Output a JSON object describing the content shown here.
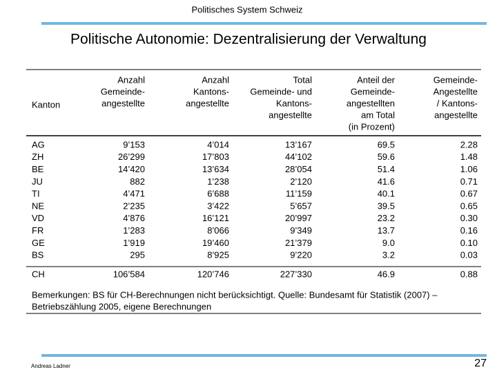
{
  "header": {
    "text": "Politisches System Schweiz"
  },
  "title": "Politische Autonomie: Dezentralisierung der Verwaltung",
  "table": {
    "columns": [
      [
        "Kanton"
      ],
      [
        "Anzahl",
        "Gemeinde-",
        "angestellte"
      ],
      [
        "Anzahl",
        "Kantons-",
        "angestellte"
      ],
      [
        "Total",
        "Gemeinde- und",
        "Kantons-",
        "angestellte"
      ],
      [
        "Anteil der",
        "Gemeinde-",
        "angestellten",
        "am Total",
        "(in Prozent)"
      ],
      [
        "Gemeinde-",
        "Angestellte",
        "/ Kantons-",
        "angestellte"
      ]
    ],
    "rows": [
      [
        "AG",
        "9’153",
        "4’014",
        "13’167",
        "69.5",
        "2.28"
      ],
      [
        "ZH",
        "26’299",
        "17’803",
        "44’102",
        "59.6",
        "1.48"
      ],
      [
        "BE",
        "14’420",
        "13’634",
        "28’054",
        "51.4",
        "1.06"
      ],
      [
        "JU",
        "882",
        "1’238",
        "2’120",
        "41.6",
        "0.71"
      ],
      [
        "TI",
        "4’471",
        "6’688",
        "11’159",
        "40.1",
        "0.67"
      ],
      [
        "NE",
        "2’235",
        "3’422",
        "5’657",
        "39.5",
        "0.65"
      ],
      [
        "VD",
        "4’876",
        "16’121",
        "20’997",
        "23.2",
        "0.30"
      ],
      [
        "FR",
        "1’283",
        "8’066",
        "9’349",
        "13.7",
        "0.16"
      ],
      [
        "GE",
        "1’919",
        "19’460",
        "21’379",
        "9.0",
        "0.10"
      ],
      [
        "BS",
        "295",
        "8’925",
        "9’220",
        "3.2",
        "0.03"
      ]
    ],
    "total": [
      "CH",
      "106’584",
      "120’746",
      "227’330",
      "46.9",
      "0.88"
    ],
    "remarks": [
      "Bemerkungen: BS für CH-Berechnungen nicht berücksichtigt. Quelle: Bundesamt für Statistik (2007) –",
      "Betriebszählung 2005, eigene Berechnungen"
    ]
  },
  "footer": {
    "author": "Andreas Ladner",
    "page": "27"
  }
}
